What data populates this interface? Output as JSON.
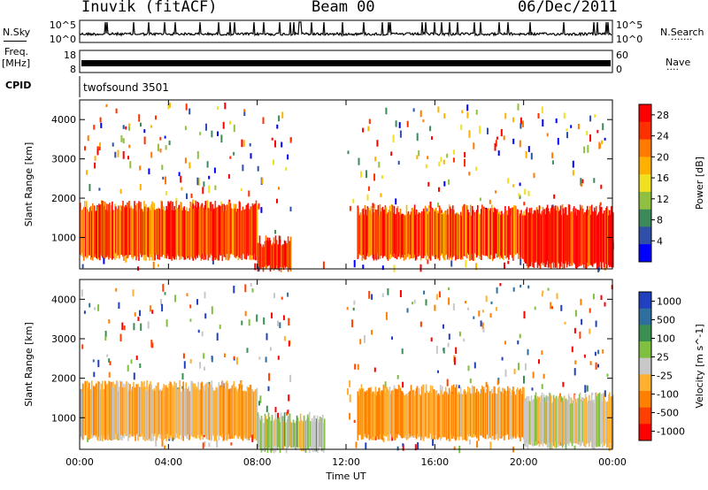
{
  "header": {
    "left_title": "Inuvik (fitACF)",
    "center_title": "Beam 00",
    "right_title": "06/Dec/2011"
  },
  "strip_labels": {
    "nsky": "N.Sky",
    "freq_top": "Freq.",
    "freq_unit": "[MHz]",
    "cpid": "CPID",
    "nsearch": "N.Search",
    "nave": "Nave",
    "nsky_ticks": [
      "10^5",
      "10^0"
    ],
    "nsearch_ticks": [
      "10^5",
      "10^0"
    ],
    "freq_ticks": [
      "18",
      "8"
    ],
    "nave_ticks": [
      "60",
      "0"
    ],
    "cpid_text": "twofsound 3501"
  },
  "colors": {
    "power_scale": [
      "#0000ff",
      "#2f4fa8",
      "#3c8a5a",
      "#90c040",
      "#f0e020",
      "#ffb000",
      "#ff7a00",
      "#ff3000",
      "#ff0000"
    ],
    "velocity_scale": [
      "#2040c0",
      "#2f6fa0",
      "#3a9050",
      "#80c040",
      "#c8c8c8",
      "#ffb030",
      "#ff8000",
      "#ff4000",
      "#ff0000"
    ]
  },
  "chart_data": [
    {
      "type": "heatmap",
      "name": "power",
      "xlabel": "",
      "ylabel": "Slant Range [km]",
      "xlim": [
        0,
        24
      ],
      "ylim": [
        200,
        4500
      ],
      "xticks": [
        "00:00",
        "04:00",
        "08:00",
        "12:00",
        "16:00",
        "20:00",
        "00:00"
      ],
      "yticks": [
        "1000",
        "2000",
        "3000",
        "4000"
      ],
      "colorbar": {
        "label": "Power [dB]",
        "ticks": [
          "4",
          "8",
          "12",
          "16",
          "20",
          "24",
          "28"
        ],
        "range": [
          0,
          30
        ]
      },
      "bands": [
        {
          "t": [
            0,
            8
          ],
          "r": [
            500,
            1800
          ],
          "level": 24
        },
        {
          "t": [
            8,
            9.5
          ],
          "r": [
            200,
            900
          ],
          "level": 28
        },
        {
          "t": [
            12.5,
            20
          ],
          "r": [
            500,
            1700
          ],
          "level": 24
        },
        {
          "t": [
            20,
            24
          ],
          "r": [
            300,
            1700
          ],
          "level": 28
        }
      ]
    },
    {
      "type": "heatmap",
      "name": "velocity",
      "xlabel": "Time UT",
      "ylabel": "Slant Range [km]",
      "xlim": [
        0,
        24
      ],
      "ylim": [
        200,
        4500
      ],
      "xticks": [
        "00:00",
        "04:00",
        "08:00",
        "12:00",
        "16:00",
        "20:00",
        "00:00"
      ],
      "yticks": [
        "1000",
        "2000",
        "3000",
        "4000"
      ],
      "colorbar": {
        "label": "Velocity [m s^-1]",
        "ticks": [
          "1000",
          "500",
          "100",
          "25",
          "-25",
          "-100",
          "-500",
          "-1000"
        ],
        "range": [
          1000,
          -1000
        ]
      },
      "bands": [
        {
          "t": [
            0,
            8
          ],
          "r": [
            500,
            1800
          ],
          "level": -200
        },
        {
          "t": [
            8,
            11
          ],
          "r": [
            200,
            1000
          ],
          "level": 100
        },
        {
          "t": [
            12.5,
            20
          ],
          "r": [
            500,
            1700
          ],
          "level": -300
        },
        {
          "t": [
            20,
            24
          ],
          "r": [
            300,
            1500
          ],
          "level": -50
        }
      ]
    }
  ]
}
